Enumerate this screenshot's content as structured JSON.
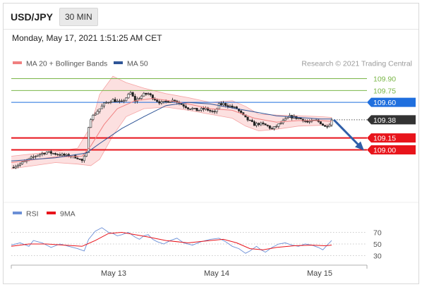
{
  "header": {
    "symbol": "USD/JPY",
    "timeframe": "30 MIN"
  },
  "datetime": "Monday, May 17, 2021 1:51:25 AM CET",
  "legend": {
    "bollinger": {
      "label": "MA 20 + Bollinger Bands",
      "color": "#f08080"
    },
    "ma50": {
      "label": "MA 50",
      "color": "#2f5597"
    },
    "credit": "Research © 2021 Trading Central"
  },
  "chart_data": {
    "type": "candlestick",
    "title": "USD/JPY",
    "timeframe": "30 MIN",
    "x_ticks": [
      "May 13",
      "May 14",
      "May 15"
    ],
    "price_axis": {
      "ylim": [
        108.65,
        110.0
      ]
    },
    "levels": [
      {
        "value": 109.9,
        "label": "109.90",
        "kind": "resistance",
        "color": "#7ab648"
      },
      {
        "value": 109.75,
        "label": "109.75",
        "kind": "resistance",
        "color": "#7ab648"
      },
      {
        "value": 109.6,
        "label": "109.60",
        "kind": "pivot",
        "color": "#1f6fde"
      },
      {
        "value": 109.38,
        "label": "109.38",
        "kind": "last",
        "color": "#333333"
      },
      {
        "value": 109.15,
        "label": "109.15",
        "kind": "support",
        "color": "#e8141b"
      },
      {
        "value": 109.0,
        "label": "109.00",
        "kind": "support",
        "color": "#e8141b"
      }
    ],
    "price_path": [
      [
        0,
        108.78
      ],
      [
        4,
        108.82
      ],
      [
        8,
        108.88
      ],
      [
        12,
        108.94
      ],
      [
        16,
        108.97
      ],
      [
        20,
        108.95
      ],
      [
        24,
        108.93
      ],
      [
        28,
        108.92
      ],
      [
        30,
        108.9
      ],
      [
        32,
        108.86
      ],
      [
        34,
        108.95
      ],
      [
        35,
        109.3
      ],
      [
        36,
        109.4
      ],
      [
        38,
        109.46
      ],
      [
        40,
        109.52
      ],
      [
        42,
        109.58
      ],
      [
        44,
        109.61
      ],
      [
        46,
        109.63
      ],
      [
        48,
        109.61
      ],
      [
        50,
        109.6
      ],
      [
        52,
        109.66
      ],
      [
        54,
        109.72
      ],
      [
        56,
        109.62
      ],
      [
        58,
        109.66
      ],
      [
        60,
        109.7
      ],
      [
        62,
        109.71
      ],
      [
        64,
        109.66
      ],
      [
        66,
        109.62
      ],
      [
        68,
        109.59
      ],
      [
        70,
        109.61
      ],
      [
        72,
        109.62
      ],
      [
        74,
        109.63
      ],
      [
        76,
        109.59
      ],
      [
        78,
        109.56
      ],
      [
        80,
        109.53
      ],
      [
        82,
        109.52
      ],
      [
        84,
        109.5
      ],
      [
        86,
        109.51
      ],
      [
        88,
        109.52
      ],
      [
        90,
        109.49
      ],
      [
        92,
        109.47
      ],
      [
        94,
        109.57
      ],
      [
        96,
        109.58
      ],
      [
        98,
        109.56
      ],
      [
        100,
        109.54
      ],
      [
        102,
        109.52
      ],
      [
        104,
        109.46
      ],
      [
        106,
        109.4
      ],
      [
        108,
        109.36
      ],
      [
        110,
        109.32
      ],
      [
        112,
        109.33
      ],
      [
        114,
        109.32
      ],
      [
        116,
        109.3
      ],
      [
        118,
        109.26
      ],
      [
        120,
        109.3
      ],
      [
        122,
        109.34
      ],
      [
        124,
        109.38
      ],
      [
        126,
        109.42
      ],
      [
        128,
        109.41
      ],
      [
        130,
        109.4
      ],
      [
        132,
        109.38
      ],
      [
        134,
        109.35
      ],
      [
        136,
        109.36
      ],
      [
        138,
        109.37
      ],
      [
        140,
        109.34
      ],
      [
        142,
        109.29
      ],
      [
        144,
        109.33
      ],
      [
        145,
        109.38
      ]
    ],
    "ma50_path": [
      [
        0,
        108.86
      ],
      [
        20,
        108.9
      ],
      [
        34,
        108.96
      ],
      [
        40,
        109.08
      ],
      [
        50,
        109.27
      ],
      [
        60,
        109.42
      ],
      [
        70,
        109.56
      ],
      [
        80,
        109.6
      ],
      [
        90,
        109.58
      ],
      [
        100,
        109.53
      ],
      [
        110,
        109.48
      ],
      [
        120,
        109.43
      ],
      [
        130,
        109.41
      ],
      [
        140,
        109.39
      ],
      [
        145,
        109.39
      ]
    ],
    "ma20_path": [
      [
        0,
        108.84
      ],
      [
        20,
        108.91
      ],
      [
        32,
        108.92
      ],
      [
        36,
        109.05
      ],
      [
        42,
        109.32
      ],
      [
        48,
        109.52
      ],
      [
        56,
        109.62
      ],
      [
        64,
        109.65
      ],
      [
        72,
        109.62
      ],
      [
        80,
        109.58
      ],
      [
        90,
        109.52
      ],
      [
        100,
        109.5
      ],
      [
        110,
        109.4
      ],
      [
        120,
        109.35
      ],
      [
        130,
        109.37
      ],
      [
        140,
        109.37
      ],
      [
        145,
        109.36
      ]
    ],
    "bb_upper": [
      [
        0,
        108.92
      ],
      [
        20,
        108.98
      ],
      [
        30,
        109.02
      ],
      [
        36,
        109.3
      ],
      [
        40,
        109.7
      ],
      [
        46,
        109.93
      ],
      [
        52,
        109.85
      ],
      [
        60,
        109.78
      ],
      [
        70,
        109.71
      ],
      [
        80,
        109.66
      ],
      [
        90,
        109.6
      ],
      [
        100,
        109.62
      ],
      [
        106,
        109.55
      ],
      [
        112,
        109.45
      ],
      [
        120,
        109.44
      ],
      [
        130,
        109.43
      ],
      [
        140,
        109.42
      ],
      [
        145,
        109.41
      ]
    ],
    "bb_lower": [
      [
        0,
        108.76
      ],
      [
        20,
        108.84
      ],
      [
        30,
        108.82
      ],
      [
        36,
        108.8
      ],
      [
        40,
        108.88
      ],
      [
        46,
        109.18
      ],
      [
        52,
        109.42
      ],
      [
        60,
        109.52
      ],
      [
        70,
        109.54
      ],
      [
        80,
        109.5
      ],
      [
        90,
        109.45
      ],
      [
        100,
        109.4
      ],
      [
        106,
        109.3
      ],
      [
        112,
        109.24
      ],
      [
        120,
        109.26
      ],
      [
        130,
        109.3
      ],
      [
        140,
        109.31
      ],
      [
        145,
        109.31
      ]
    ],
    "forecast_arrow": {
      "from": 109.38,
      "to": 109.0
    },
    "rsi": {
      "ylim": [
        20,
        80
      ],
      "ticks": [
        {
          "value": 70,
          "label": "70"
        },
        {
          "value": 50,
          "label": "50"
        },
        {
          "value": 30,
          "label": "30"
        }
      ],
      "rsi_path": [
        [
          0,
          48
        ],
        [
          4,
          52
        ],
        [
          8,
          46
        ],
        [
          10,
          56
        ],
        [
          14,
          52
        ],
        [
          18,
          44
        ],
        [
          22,
          50
        ],
        [
          26,
          46
        ],
        [
          30,
          42
        ],
        [
          33,
          38
        ],
        [
          35,
          58
        ],
        [
          38,
          72
        ],
        [
          41,
          78
        ],
        [
          44,
          70
        ],
        [
          46,
          68
        ],
        [
          48,
          64
        ],
        [
          50,
          66
        ],
        [
          53,
          70
        ],
        [
          56,
          62
        ],
        [
          58,
          58
        ],
        [
          60,
          64
        ],
        [
          62,
          66
        ],
        [
          64,
          58
        ],
        [
          66,
          54
        ],
        [
          69,
          50
        ],
        [
          72,
          56
        ],
        [
          75,
          60
        ],
        [
          78,
          52
        ],
        [
          82,
          48
        ],
        [
          86,
          54
        ],
        [
          90,
          58
        ],
        [
          94,
          60
        ],
        [
          97,
          54
        ],
        [
          100,
          46
        ],
        [
          103,
          42
        ],
        [
          106,
          34
        ],
        [
          108,
          38
        ],
        [
          111,
          46
        ],
        [
          113,
          40
        ],
        [
          115,
          36
        ],
        [
          118,
          44
        ],
        [
          121,
          50
        ],
        [
          124,
          52
        ],
        [
          127,
          48
        ],
        [
          130,
          46
        ],
        [
          133,
          50
        ],
        [
          136,
          48
        ],
        [
          139,
          44
        ],
        [
          141,
          40
        ],
        [
          143,
          48
        ],
        [
          145,
          56
        ]
      ],
      "ma_path": [
        [
          0,
          46
        ],
        [
          8,
          50
        ],
        [
          16,
          50
        ],
        [
          24,
          48
        ],
        [
          32,
          46
        ],
        [
          38,
          56
        ],
        [
          44,
          68
        ],
        [
          50,
          70
        ],
        [
          56,
          66
        ],
        [
          62,
          62
        ],
        [
          70,
          56
        ],
        [
          80,
          52
        ],
        [
          90,
          56
        ],
        [
          96,
          58
        ],
        [
          102,
          52
        ],
        [
          108,
          42
        ],
        [
          114,
          40
        ],
        [
          120,
          44
        ],
        [
          128,
          47
        ],
        [
          136,
          48
        ],
        [
          142,
          47
        ],
        [
          145,
          48
        ]
      ],
      "legend": {
        "rsi": {
          "label": "RSI",
          "color": "#6b8fd6"
        },
        "ma": {
          "label": "9MA",
          "color": "#e8141b"
        }
      }
    }
  }
}
